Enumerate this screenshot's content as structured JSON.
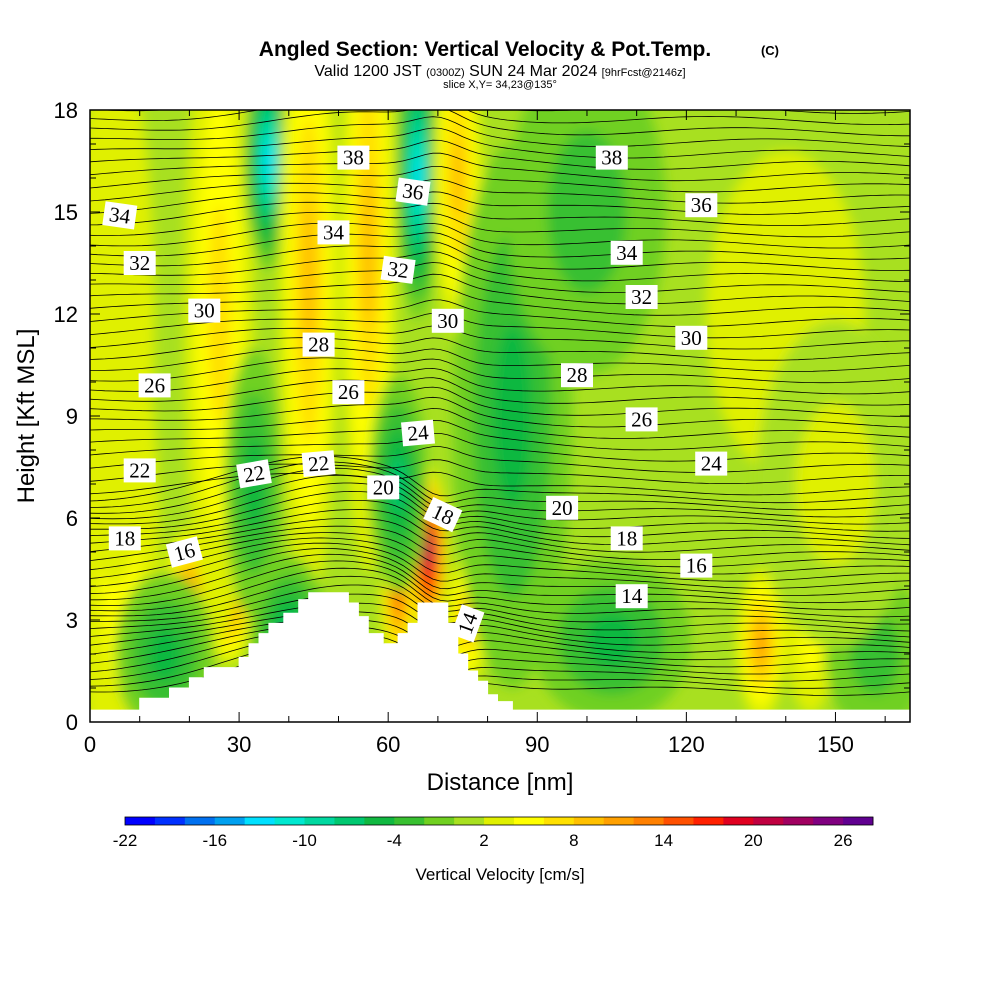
{
  "title": {
    "main": "Angled Section: Vertical Velocity & Pot.Temp.",
    "copyright": "(C)",
    "valid_a": "Valid 1200 JST",
    "valid_b": "(0300Z)",
    "valid_c": "SUN 24 Mar 2024",
    "valid_d": "[9hrFcst@2146z]",
    "slice": "slice X,Y= 34,23@135°"
  },
  "chart_data": {
    "type": "heatmap",
    "xlabel": "Distance [nm]",
    "ylabel": "Height [Kft MSL]",
    "xlim": [
      0,
      165
    ],
    "ylim": [
      0,
      18
    ],
    "xticks": [
      0,
      30,
      60,
      90,
      120,
      150
    ],
    "yticks": [
      0,
      3,
      6,
      9,
      12,
      15,
      18
    ],
    "colorbar": {
      "label": "Vertical Velocity [cm/s]",
      "tick_labels": [
        "-22",
        "-16",
        "-10",
        "-4",
        "2",
        "8",
        "14",
        "20",
        "26"
      ],
      "colors": [
        "#0000ff",
        "#0030ff",
        "#0070f0",
        "#00a0f0",
        "#00e0ff",
        "#00e8d0",
        "#00d8a0",
        "#00c870",
        "#10b840",
        "#38c030",
        "#70d020",
        "#a8e020",
        "#e0f000",
        "#ffff00",
        "#ffe000",
        "#ffc000",
        "#ffa000",
        "#ff8000",
        "#ff5000",
        "#ff2000",
        "#e00020",
        "#c00040",
        "#a00060",
        "#800080",
        "#600090"
      ]
    },
    "terrain_profile": [
      [
        0,
        0.35
      ],
      [
        10,
        0.35
      ],
      [
        10,
        0.7
      ],
      [
        16,
        0.7
      ],
      [
        16,
        1.0
      ],
      [
        20,
        1.0
      ],
      [
        20,
        1.3
      ],
      [
        23,
        1.3
      ],
      [
        23,
        1.6
      ],
      [
        30,
        1.6
      ],
      [
        30,
        1.9
      ],
      [
        32,
        1.9
      ],
      [
        32,
        2.3
      ],
      [
        34,
        2.3
      ],
      [
        34,
        2.6
      ],
      [
        36,
        2.6
      ],
      [
        36,
        2.9
      ],
      [
        39,
        2.9
      ],
      [
        39,
        3.2
      ],
      [
        42,
        3.2
      ],
      [
        42,
        3.6
      ],
      [
        44,
        3.6
      ],
      [
        44,
        3.8
      ],
      [
        52,
        3.8
      ],
      [
        52,
        3.5
      ],
      [
        54,
        3.5
      ],
      [
        54,
        3.1
      ],
      [
        56,
        3.1
      ],
      [
        56,
        2.6
      ],
      [
        59,
        2.6
      ],
      [
        59,
        2.3
      ],
      [
        62,
        2.3
      ],
      [
        62,
        2.6
      ],
      [
        64,
        2.6
      ],
      [
        64,
        2.9
      ],
      [
        66,
        2.9
      ],
      [
        66,
        3.5
      ],
      [
        72,
        3.5
      ],
      [
        72,
        2.9
      ],
      [
        74,
        2.9
      ],
      [
        74,
        2.0
      ],
      [
        76,
        2.0
      ],
      [
        76,
        1.5
      ],
      [
        78,
        1.5
      ],
      [
        78,
        1.2
      ],
      [
        80,
        1.2
      ],
      [
        80,
        0.8
      ],
      [
        82,
        0.8
      ],
      [
        82,
        0.6
      ],
      [
        85,
        0.6
      ],
      [
        85,
        0.35
      ],
      [
        165,
        0.35
      ]
    ],
    "velocity_fields": [
      {
        "x": 6,
        "y": 5,
        "v": 6,
        "sx": 4,
        "sy": 5
      },
      {
        "x": 5,
        "y": 12,
        "v": 4,
        "sx": 4,
        "sy": 5
      },
      {
        "x": 20,
        "y": 3.5,
        "v": 14,
        "sx": 2.8,
        "sy": 1.4
      },
      {
        "x": 28,
        "y": 3.6,
        "v": 14,
        "sx": 2.5,
        "sy": 1.2
      },
      {
        "x": 26,
        "y": 12,
        "v": 8,
        "sx": 3.5,
        "sy": 6
      },
      {
        "x": 36,
        "y": 16.5,
        "v": -12,
        "sx": 2.5,
        "sy": 2
      },
      {
        "x": 44,
        "y": 13,
        "v": 10,
        "sx": 3,
        "sy": 6
      },
      {
        "x": 56,
        "y": 14,
        "v": 10,
        "sx": 2.8,
        "sy": 6
      },
      {
        "x": 62,
        "y": 3.8,
        "v": 16,
        "sx": 1.8,
        "sy": 1.4
      },
      {
        "x": 68,
        "y": 5,
        "v": 24,
        "sx": 2,
        "sy": 1.6
      },
      {
        "x": 66,
        "y": 16,
        "v": -12,
        "sx": 2.2,
        "sy": 2.6
      },
      {
        "x": 74,
        "y": 16,
        "v": 10,
        "sx": 2.5,
        "sy": 3
      },
      {
        "x": 76,
        "y": 3,
        "v": 10,
        "sx": 2.2,
        "sy": 1.2
      },
      {
        "x": 62,
        "y": 7,
        "v": -6,
        "sx": 3,
        "sy": 2
      },
      {
        "x": 33,
        "y": 7,
        "v": -4,
        "sx": 3,
        "sy": 2.5
      },
      {
        "x": 85,
        "y": 9,
        "v": -4,
        "sx": 6,
        "sy": 5
      },
      {
        "x": 100,
        "y": 15,
        "v": -3,
        "sx": 8,
        "sy": 3
      },
      {
        "x": 140,
        "y": 12,
        "v": 4,
        "sx": 8,
        "sy": 3
      },
      {
        "x": 135,
        "y": 2.3,
        "v": 12,
        "sx": 2.5,
        "sy": 1.4
      },
      {
        "x": 145,
        "y": 2.5,
        "v": 6,
        "sx": 2.5,
        "sy": 1.4
      },
      {
        "x": 105,
        "y": 2.4,
        "v": -4,
        "sx": 8,
        "sy": 1.5
      },
      {
        "x": 158,
        "y": 2,
        "v": -2,
        "sx": 5,
        "sy": 1.5
      },
      {
        "x": 40,
        "y": 2.5,
        "v": -6,
        "sx": 4,
        "sy": 1.5
      },
      {
        "x": 15,
        "y": 2,
        "v": -4,
        "sx": 5,
        "sy": 1.5
      },
      {
        "x": 150,
        "y": 7,
        "v": 3,
        "sx": 8,
        "sy": 3
      }
    ],
    "isentrope_labels": [
      {
        "text": "38",
        "x": 53,
        "y": 16.6,
        "a": 0
      },
      {
        "text": "36",
        "x": 65,
        "y": 15.6,
        "a": 8
      },
      {
        "text": "34",
        "x": 49,
        "y": 14.4,
        "a": 0
      },
      {
        "text": "32",
        "x": 62,
        "y": 13.3,
        "a": 8
      },
      {
        "text": "30",
        "x": 72,
        "y": 11.8,
        "a": 0
      },
      {
        "text": "28",
        "x": 46,
        "y": 11.1,
        "a": 0
      },
      {
        "text": "26",
        "x": 52,
        "y": 9.7,
        "a": 0
      },
      {
        "text": "24",
        "x": 66,
        "y": 8.5,
        "a": -5
      },
      {
        "text": "22",
        "x": 46,
        "y": 7.6,
        "a": -5
      },
      {
        "text": "20",
        "x": 59,
        "y": 6.9,
        "a": 0
      },
      {
        "text": "18",
        "x": 71,
        "y": 6.1,
        "a": 25
      },
      {
        "text": "14",
        "x": 76,
        "y": 2.9,
        "a": -70
      },
      {
        "text": "34",
        "x": 6,
        "y": 14.9,
        "a": 8
      },
      {
        "text": "32",
        "x": 10,
        "y": 13.5,
        "a": 0
      },
      {
        "text": "30",
        "x": 23,
        "y": 12.1,
        "a": 0
      },
      {
        "text": "26",
        "x": 13,
        "y": 9.9,
        "a": 0
      },
      {
        "text": "22",
        "x": 10,
        "y": 7.4,
        "a": 0
      },
      {
        "text": "22",
        "x": 33,
        "y": 7.3,
        "a": -10
      },
      {
        "text": "18",
        "x": 7,
        "y": 5.4,
        "a": 0
      },
      {
        "text": "16",
        "x": 19,
        "y": 5.0,
        "a": -15
      },
      {
        "text": "38",
        "x": 105,
        "y": 16.6,
        "a": 0
      },
      {
        "text": "36",
        "x": 123,
        "y": 15.2,
        "a": 0
      },
      {
        "text": "34",
        "x": 108,
        "y": 13.8,
        "a": 0
      },
      {
        "text": "32",
        "x": 111,
        "y": 12.5,
        "a": 0
      },
      {
        "text": "30",
        "x": 121,
        "y": 11.3,
        "a": 0
      },
      {
        "text": "28",
        "x": 98,
        "y": 10.2,
        "a": 0
      },
      {
        "text": "26",
        "x": 111,
        "y": 8.9,
        "a": 0
      },
      {
        "text": "24",
        "x": 125,
        "y": 7.6,
        "a": 0
      },
      {
        "text": "20",
        "x": 95,
        "y": 6.3,
        "a": 0
      },
      {
        "text": "18",
        "x": 108,
        "y": 5.4,
        "a": 0
      },
      {
        "text": "16",
        "x": 122,
        "y": 4.6,
        "a": 0
      },
      {
        "text": "14",
        "x": 109,
        "y": 3.7,
        "a": 0
      }
    ]
  }
}
